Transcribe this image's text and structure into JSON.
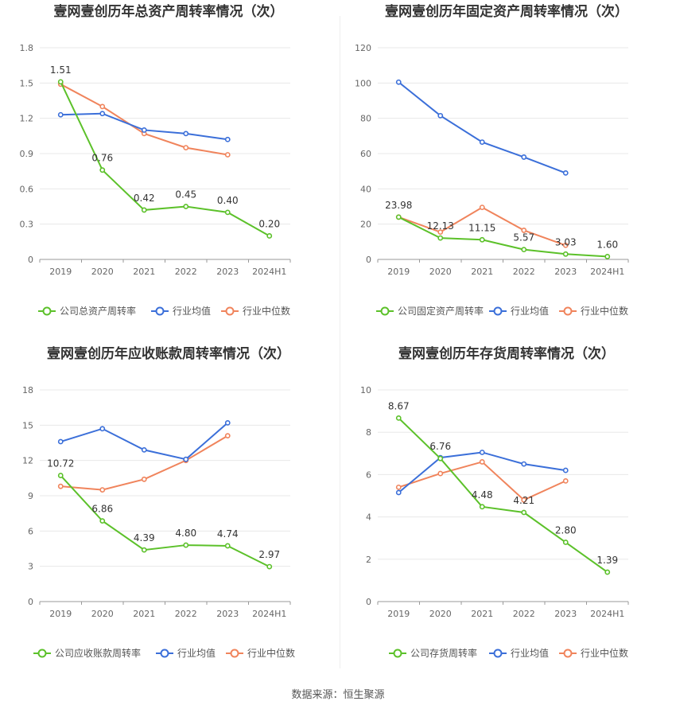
{
  "footer": {
    "source_text": "数据来源：恒生聚源"
  },
  "legend_common": {
    "avg_label": "行业均值",
    "median_label": "行业中位数"
  },
  "colors": {
    "company": "#5cc12a",
    "avg": "#3b6fd9",
    "median": "#f0845c",
    "grid": "#e8e8e8",
    "axis_text": "#666666"
  },
  "chart_data": [
    {
      "type": "line",
      "title": "壹网壹创历年总资产周转率情况（次）",
      "categories": [
        "2019",
        "2020",
        "2021",
        "2022",
        "2023",
        "2024H1"
      ],
      "yticks": [
        "0",
        "0.3",
        "0.6",
        "0.9",
        "1.2",
        "1.5",
        "1.8"
      ],
      "ylim": [
        0,
        1.8
      ],
      "series": [
        {
          "name": "公司总资产周转率",
          "values": [
            1.51,
            0.76,
            0.42,
            0.45,
            0.4,
            0.2
          ],
          "labels": [
            "1.51",
            "0.76",
            "0.42",
            "0.45",
            "0.40",
            "0.20"
          ]
        },
        {
          "name": "行业均值",
          "values": [
            1.23,
            1.24,
            1.1,
            1.07,
            1.02,
            null
          ]
        },
        {
          "name": "行业中位数",
          "values": [
            1.49,
            1.3,
            1.07,
            0.95,
            0.89,
            null
          ]
        }
      ]
    },
    {
      "type": "line",
      "title": "壹网壹创历年固定资产周转率情况（次）",
      "categories": [
        "2019",
        "2020",
        "2021",
        "2022",
        "2023",
        "2024H1"
      ],
      "yticks": [
        "0",
        "20",
        "40",
        "60",
        "80",
        "100",
        "120"
      ],
      "ylim": [
        0,
        120
      ],
      "series": [
        {
          "name": "公司固定资产周转率",
          "values": [
            23.98,
            12.13,
            11.15,
            5.57,
            3.03,
            1.6
          ],
          "labels": [
            "23.98",
            "12.13",
            "11.15",
            "5.57",
            "3.03",
            "1.60"
          ]
        },
        {
          "name": "行业均值",
          "values": [
            100.5,
            81.5,
            66.5,
            58.0,
            49.0,
            null
          ]
        },
        {
          "name": "行业中位数",
          "values": [
            24.0,
            15.5,
            29.5,
            16.5,
            8.0,
            null
          ]
        }
      ]
    },
    {
      "type": "line",
      "title": "壹网壹创历年应收账款周转率情况（次）",
      "categories": [
        "2019",
        "2020",
        "2021",
        "2022",
        "2023",
        "2024H1"
      ],
      "yticks": [
        "0",
        "3",
        "6",
        "9",
        "12",
        "15",
        "18"
      ],
      "ylim": [
        0,
        18
      ],
      "series": [
        {
          "name": "公司应收账款周转率",
          "values": [
            10.72,
            6.86,
            4.39,
            4.8,
            4.74,
            2.97
          ],
          "labels": [
            "10.72",
            "6.86",
            "4.39",
            "4.80",
            "4.74",
            "2.97"
          ]
        },
        {
          "name": "行业均值",
          "values": [
            13.6,
            14.7,
            12.9,
            12.1,
            15.2,
            null
          ]
        },
        {
          "name": "行业中位数",
          "values": [
            9.8,
            9.5,
            10.4,
            12.0,
            14.1,
            null
          ]
        }
      ]
    },
    {
      "type": "line",
      "title": "壹网壹创历年存货周转率情况（次）",
      "categories": [
        "2019",
        "2020",
        "2021",
        "2022",
        "2023",
        "2024H1"
      ],
      "yticks": [
        "0",
        "2",
        "4",
        "6",
        "8",
        "10"
      ],
      "ylim": [
        0,
        10
      ],
      "series": [
        {
          "name": "公司存货周转率",
          "values": [
            8.67,
            6.76,
            4.48,
            4.21,
            2.8,
            1.39
          ],
          "labels": [
            "8.67",
            "6.76",
            "4.48",
            "4.21",
            "2.80",
            "1.39"
          ]
        },
        {
          "name": "行业均值",
          "values": [
            5.15,
            6.8,
            7.05,
            6.5,
            6.2,
            null
          ]
        },
        {
          "name": "行业中位数",
          "values": [
            5.4,
            6.05,
            6.6,
            4.8,
            5.7,
            null
          ]
        }
      ]
    }
  ]
}
